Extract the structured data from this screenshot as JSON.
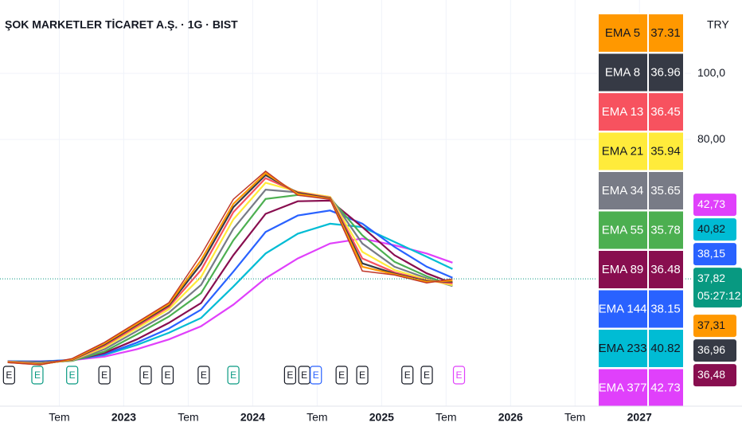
{
  "chart_data": {
    "type": "line",
    "title": "ŞOK MARKETLER TİCARET A.Ş. · 1G · BIST",
    "currency": "TRY",
    "countdown": "05:27:12",
    "x": [
      2022.1,
      2022.35,
      2022.6,
      2022.85,
      2023.1,
      2023.35,
      2023.6,
      2023.85,
      2024.1,
      2024.35,
      2024.6,
      2024.85,
      2025.1,
      2025.35,
      2025.55
    ],
    "xlim": [
      2022.04,
      2027.4
    ],
    "xticks": [
      {
        "value": 2022.5,
        "label": "Tem"
      },
      2023,
      {
        "value": 2023.5,
        "label": "Tem"
      },
      2024,
      {
        "value": 2024.5,
        "label": "Tem"
      },
      2025,
      {
        "value": 2025.5,
        "label": "Tem"
      },
      2026,
      {
        "value": 2026.5,
        "label": "Tem"
      },
      2027
    ],
    "ylim": [
      -0.7,
      122.2
    ],
    "yticks": [
      {
        "value": 100,
        "label": "100,0"
      },
      {
        "value": 80,
        "label": "80,00"
      }
    ],
    "grid": true,
    "series": [
      {
        "color": "#089981",
        "values": [
          12.5,
          11.8,
          13.7,
          18.6,
          24.6,
          30.6,
          45.1,
          61.9,
          70.4,
          63.1,
          61.9,
          40.2,
          39.0,
          36.6,
          37.82
        ],
        "value_labels": [
          null,
          null,
          null,
          null,
          null,
          null,
          null,
          null,
          null,
          null,
          null,
          null,
          null,
          null,
          "37,82"
        ]
      },
      {
        "name": "EMA 5",
        "color": "#ff9800",
        "text_color": "#131722",
        "values": [
          12.6,
          11.9,
          13.5,
          18.3,
          24.2,
          30.2,
          43.5,
          60.5,
          69.8,
          63.5,
          62.0,
          41.5,
          39.2,
          36.9,
          37.31
        ],
        "value_labels": [
          null,
          null,
          null,
          null,
          null,
          null,
          null,
          null,
          null,
          null,
          null,
          null,
          null,
          null,
          "37,31"
        ]
      },
      {
        "name": "EMA 8",
        "color": "#363a45",
        "text_color": "#ffffff",
        "values": [
          12.6,
          12.0,
          13.4,
          18.0,
          23.9,
          29.8,
          42.3,
          59.5,
          69.2,
          63.8,
          62.2,
          42.5,
          39.4,
          37.1,
          36.96
        ],
        "value_labels": [
          null,
          null,
          null,
          null,
          null,
          null,
          null,
          null,
          null,
          null,
          null,
          null,
          null,
          null,
          "36,96"
        ]
      },
      {
        "name": "EMA 13",
        "color": "#f7525f",
        "text_color": "#ffffff",
        "values": [
          12.7,
          12.1,
          13.3,
          17.6,
          23.4,
          29.3,
          40.5,
          58.0,
          68.3,
          64.0,
          62.4,
          44.0,
          39.8,
          37.3,
          36.45
        ]
      },
      {
        "name": "EMA 21",
        "color": "#ffeb3b",
        "text_color": "#131722",
        "values": [
          12.7,
          12.2,
          13.2,
          17.1,
          22.8,
          28.6,
          38.4,
          55.8,
          66.9,
          64.2,
          62.6,
          46.0,
          40.5,
          37.6,
          35.94
        ]
      },
      {
        "name": "EMA 34",
        "color": "#787b86",
        "text_color": "#ffffff",
        "values": [
          12.8,
          12.4,
          13.1,
          16.5,
          22.0,
          27.6,
          36.0,
          53.0,
          64.8,
          64.0,
          62.6,
          48.5,
          41.5,
          38.0,
          35.65
        ]
      },
      {
        "name": "EMA 55",
        "color": "#4caf50",
        "text_color": "#ffffff",
        "values": [
          12.8,
          12.5,
          13.0,
          15.8,
          21.0,
          26.4,
          33.5,
          49.5,
          62.0,
          63.2,
          62.3,
          51.0,
          43.0,
          38.6,
          35.78
        ]
      },
      {
        "name": "EMA 89",
        "color": "#880e4f",
        "text_color": "#ffffff",
        "values": [
          12.8,
          12.6,
          13.1,
          15.4,
          19.5,
          24.5,
          30.5,
          45.0,
          57.5,
          61.3,
          61.5,
          53.5,
          45.0,
          39.5,
          36.48
        ],
        "value_labels": [
          null,
          null,
          null,
          null,
          null,
          null,
          null,
          null,
          null,
          null,
          null,
          null,
          null,
          null,
          "36,48"
        ]
      },
      {
        "name": "EMA 144",
        "color": "#2962ff",
        "text_color": "#ffffff",
        "values": [
          12.9,
          12.7,
          13.3,
          15.0,
          18.5,
          22.8,
          28.5,
          40.0,
          52.0,
          57.0,
          58.5,
          54.5,
          47.5,
          41.5,
          38.15
        ],
        "value_labels": [
          null,
          null,
          null,
          null,
          null,
          null,
          null,
          null,
          null,
          null,
          null,
          null,
          null,
          null,
          "38,15"
        ]
      },
      {
        "name": "EMA 233",
        "color": "#00bcd4",
        "text_color": "#131722",
        "values": [
          12.9,
          12.8,
          13.3,
          14.8,
          17.8,
          21.5,
          26.0,
          35.5,
          45.5,
          51.5,
          54.5,
          53.5,
          49.0,
          44.5,
          40.82
        ],
        "value_labels": [
          null,
          null,
          null,
          null,
          null,
          null,
          null,
          null,
          null,
          null,
          null,
          null,
          null,
          null,
          "40,82"
        ]
      },
      {
        "name": "EMA 377",
        "color": "#e040fb",
        "text_color": "#ffffff",
        "values": [
          12.9,
          12.9,
          13.2,
          14.3,
          16.5,
          19.5,
          23.5,
          30.0,
          38.0,
          44.0,
          48.5,
          50.0,
          48.0,
          45.5,
          42.73
        ],
        "value_labels": [
          null,
          null,
          null,
          null,
          null,
          null,
          null,
          null,
          null,
          null,
          null,
          null,
          null,
          null,
          "42,73"
        ]
      }
    ],
    "events": [
      {
        "x": 2022.11,
        "label": "E",
        "color": "#131722"
      },
      {
        "x": 2022.33,
        "label": "E",
        "color": "#089981"
      },
      {
        "x": 2022.6,
        "label": "E",
        "color": "#089981"
      },
      {
        "x": 2022.85,
        "label": "E",
        "color": "#131722"
      },
      {
        "x": 2023.17,
        "label": "E",
        "color": "#131722"
      },
      {
        "x": 2023.34,
        "label": "E",
        "color": "#131722"
      },
      {
        "x": 2023.62,
        "label": "E",
        "color": "#131722"
      },
      {
        "x": 2023.85,
        "label": "E",
        "color": "#089981"
      },
      {
        "x": 2024.29,
        "label": "E",
        "color": "#131722"
      },
      {
        "x": 2024.4,
        "label": "E",
        "color": "#131722"
      },
      {
        "x": 2024.49,
        "label": "E",
        "color": "#2962ff"
      },
      {
        "x": 2024.69,
        "label": "E",
        "color": "#131722"
      },
      {
        "x": 2024.85,
        "label": "E",
        "color": "#131722"
      },
      {
        "x": 2025.2,
        "label": "E",
        "color": "#131722"
      },
      {
        "x": 2025.35,
        "label": "E",
        "color": "#131722"
      },
      {
        "x": 2025.6,
        "label": "E",
        "color": "#e040fb"
      }
    ]
  }
}
